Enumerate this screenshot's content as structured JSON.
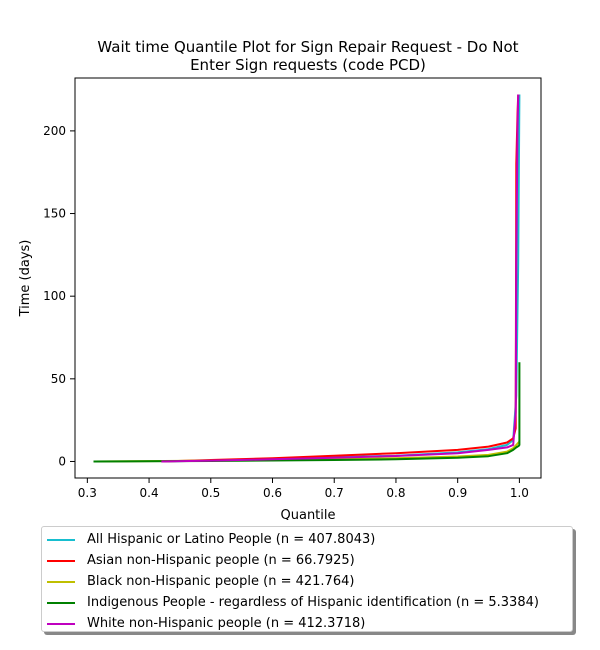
{
  "chart_data": {
    "type": "line",
    "title": "Wait time Quantile Plot for Sign Repair Request - Do Not Enter Sign  requests (code PCD)",
    "title_lines": [
      "Wait time Quantile Plot for Sign Repair Request - Do Not",
      "Enter Sign  requests (code PCD)"
    ],
    "xlabel": "Quantile",
    "ylabel": "Time (days)",
    "xlim": [
      0.28,
      1.035
    ],
    "ylim": [
      -10,
      232
    ],
    "xticks": [
      0.3,
      0.4,
      0.5,
      0.6,
      0.7,
      0.8,
      0.9,
      1.0
    ],
    "xtick_labels": [
      "0.3",
      "0.4",
      "0.5",
      "0.6",
      "0.7",
      "0.8",
      "0.9",
      "1.0"
    ],
    "yticks": [
      0,
      50,
      100,
      150,
      200
    ],
    "ytick_labels": [
      "0",
      "50",
      "100",
      "150",
      "200"
    ],
    "grid": false,
    "legend_position": "below",
    "series": [
      {
        "name": "All Hispanic or Latino People (n = 407.8043)",
        "color": "#17becf",
        "x": [
          0.42,
          0.5,
          0.6,
          0.7,
          0.8,
          0.9,
          0.95,
          0.98,
          0.99,
          0.995,
          0.998,
          1.0
        ],
        "y": [
          0,
          0.6,
          1.5,
          2.5,
          3.5,
          5.5,
          7.5,
          10,
          13,
          40,
          120,
          222
        ]
      },
      {
        "name": "Asian non-Hispanic people (n = 66.7925)",
        "color": "#ff0000",
        "x": [
          0.42,
          0.5,
          0.6,
          0.7,
          0.8,
          0.9,
          0.95,
          0.98,
          0.99,
          0.994,
          0.995,
          0.997,
          0.998
        ],
        "y": [
          0,
          0.9,
          2,
          3.5,
          5,
          7,
          9,
          11.5,
          14,
          20,
          180,
          210,
          222
        ]
      },
      {
        "name": "Black non-Hispanic people (n = 421.764)",
        "color": "#bfbf00",
        "x": [
          0.31,
          0.4,
          0.5,
          0.6,
          0.7,
          0.8,
          0.9,
          0.95,
          0.98,
          0.99,
          0.995,
          1.0
        ],
        "y": [
          0,
          0.2,
          0.5,
          0.9,
          1.3,
          1.9,
          3,
          4,
          6,
          8,
          10,
          12
        ]
      },
      {
        "name": "Indigenous People - regardless of Hispanic identification (n = 5.3384)",
        "color": "#008000",
        "x": [
          0.31,
          0.4,
          0.5,
          0.6,
          0.7,
          0.8,
          0.9,
          0.95,
          0.98,
          0.99,
          0.995,
          0.999,
          1.0,
          1.0
        ],
        "y": [
          0,
          0.1,
          0.3,
          0.6,
          0.9,
          1.3,
          2.2,
          3.2,
          5,
          7,
          8.5,
          9.5,
          10,
          60
        ]
      },
      {
        "name": "White non-Hispanic people (n = 412.3718)",
        "color": "#bf00bf",
        "x": [
          0.42,
          0.5,
          0.6,
          0.7,
          0.8,
          0.9,
          0.95,
          0.98,
          0.99,
          0.994,
          0.995,
          0.997,
          0.998
        ],
        "y": [
          0,
          0.5,
          1.3,
          2.2,
          3.3,
          5,
          7,
          8.5,
          10,
          30,
          120,
          200,
          222
        ]
      }
    ]
  }
}
